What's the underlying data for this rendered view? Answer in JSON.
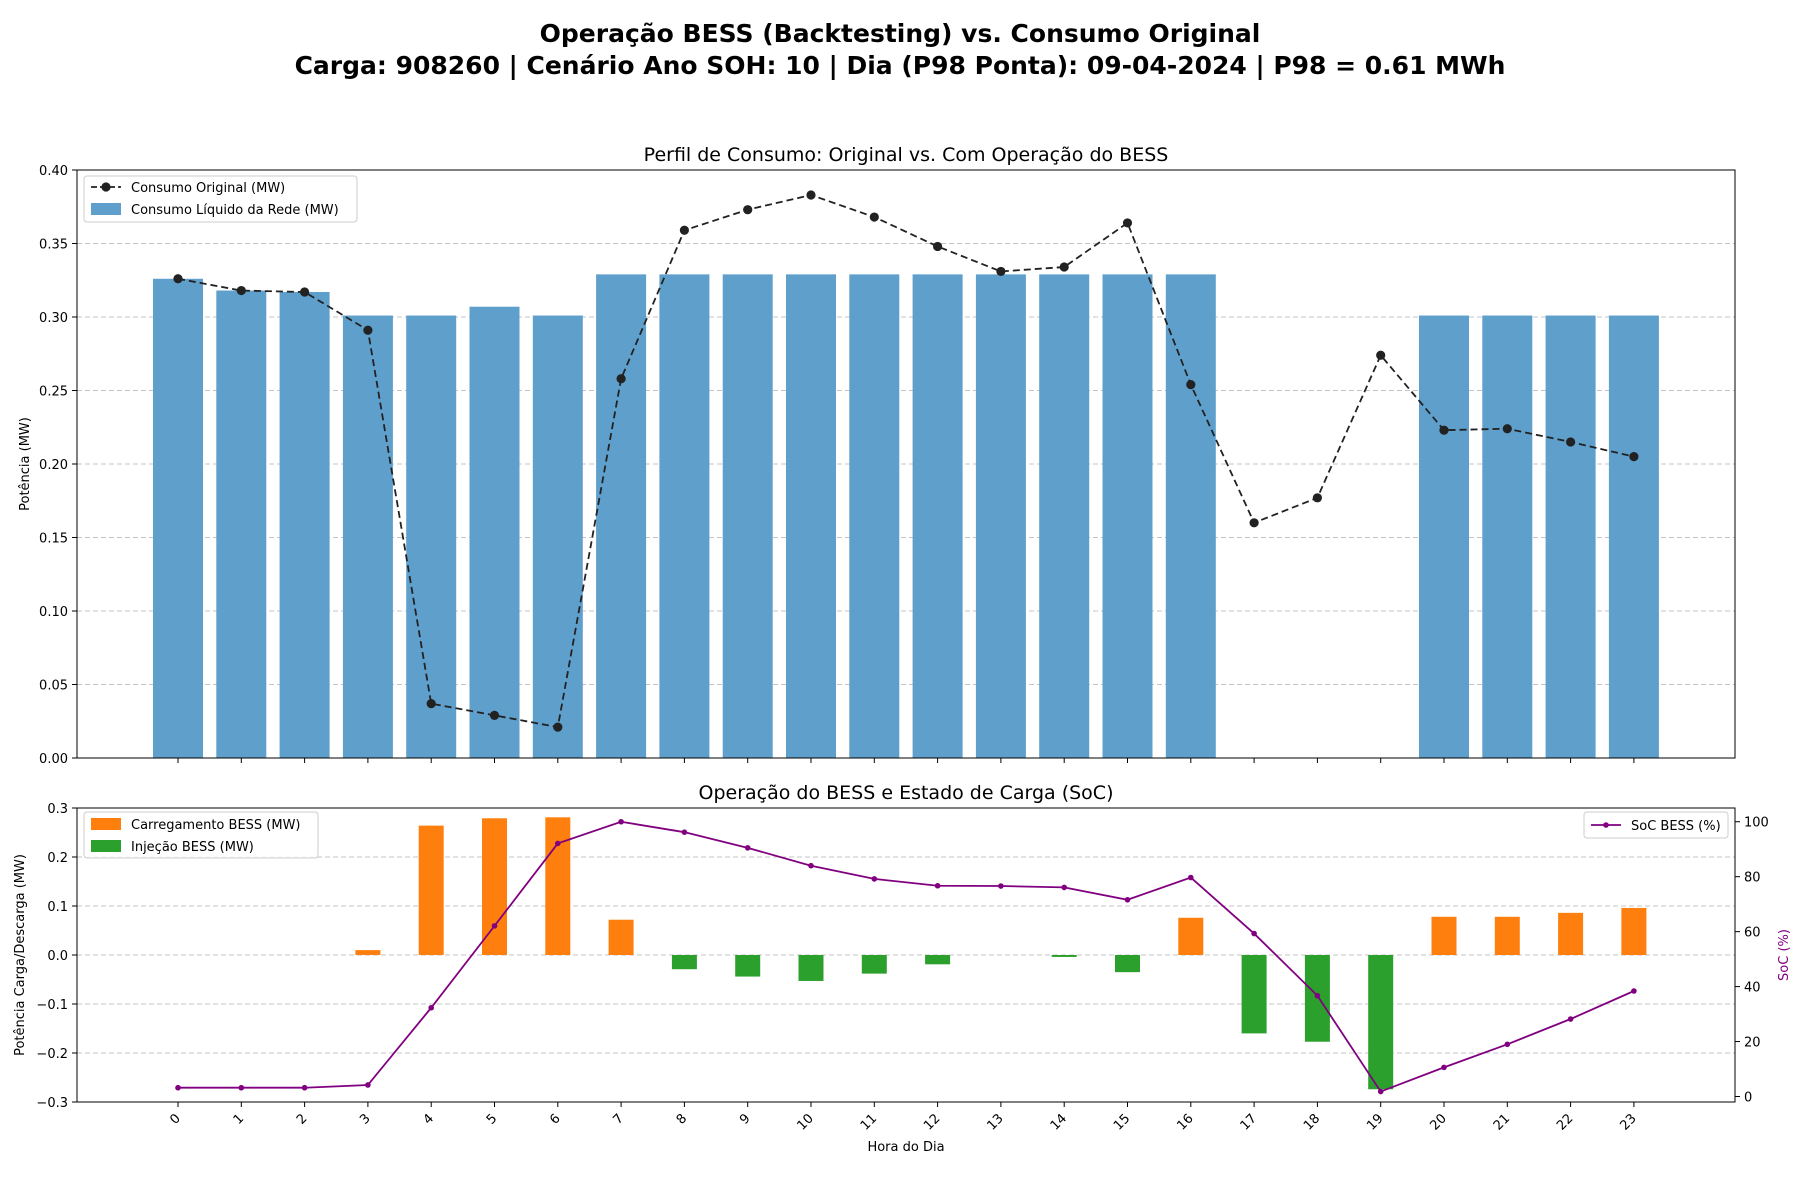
{
  "figure": {
    "title_line1": "Operação BESS (Backtesting) vs. Consumo Original",
    "title_line2": "Carga: 908260 | Cenário Ano SOH: 10 | Dia (P98 Ponta): 09-04-2024 | P98 = 0.61 MWh"
  },
  "colors": {
    "net_bar": "#5f9fcc",
    "original_line": "#222222",
    "charge_bar": "#ff7f0e",
    "discharge_bar": "#2ca02c",
    "soc_line": "#800080",
    "grid": "#c4c4c4"
  },
  "chart_data": [
    {
      "type": "bar",
      "title": "Perfil de Consumo: Original vs. Com Operação do BESS",
      "ylabel": "Potência (MW)",
      "xlabel": "",
      "ylim": [
        0,
        0.4
      ],
      "yticks": [
        "0.00",
        "0.05",
        "0.10",
        "0.15",
        "0.20",
        "0.25",
        "0.30",
        "0.35",
        "0.40"
      ],
      "grid": "horizontal, dashed",
      "legend_position": "upper-left",
      "categories": [
        0,
        1,
        2,
        3,
        4,
        5,
        6,
        7,
        8,
        9,
        10,
        11,
        12,
        13,
        14,
        15,
        16,
        17,
        18,
        19,
        20,
        21,
        22,
        23
      ],
      "series": [
        {
          "name": "Consumo Original (MW)",
          "kind": "line",
          "style": "dashed with markers",
          "values": [
            0.326,
            0.318,
            0.317,
            0.291,
            0.037,
            0.029,
            0.021,
            0.258,
            0.359,
            0.373,
            0.383,
            0.368,
            0.348,
            0.331,
            0.334,
            0.364,
            0.254,
            0.16,
            0.177,
            0.274,
            0.223,
            0.224,
            0.215,
            0.205
          ]
        },
        {
          "name": "Consumo Líquido da Rede (MW)",
          "kind": "bar",
          "values": [
            0.326,
            0.318,
            0.317,
            0.301,
            0.301,
            0.307,
            0.301,
            0.329,
            0.329,
            0.329,
            0.329,
            0.329,
            0.329,
            0.329,
            0.329,
            0.329,
            0.329,
            0,
            0,
            0,
            0.301,
            0.301,
            0.301,
            0.301
          ]
        }
      ]
    },
    {
      "type": "bar",
      "title": "Operação do BESS e Estado de Carga (SoC)",
      "xlabel": "Hora do Dia",
      "ylabel": "Potência Carga/Descarga (MW)",
      "y2label": "SoC (%)",
      "ylim": [
        -0.3,
        0.3
      ],
      "yticks": [
        "−0.3",
        "−0.2",
        "−0.1",
        "0.0",
        "0.1",
        "0.2",
        "0.3"
      ],
      "y2lim": [
        -2,
        105
      ],
      "y2ticks": [
        "0",
        "20",
        "40",
        "60",
        "80",
        "100"
      ],
      "grid": "horizontal, dashed",
      "legend_position": "upper-left and upper-right",
      "x_tick_rotation": "45 degrees",
      "categories": [
        0,
        1,
        2,
        3,
        4,
        5,
        6,
        7,
        8,
        9,
        10,
        11,
        12,
        13,
        14,
        15,
        16,
        17,
        18,
        19,
        20,
        21,
        22,
        23
      ],
      "series": [
        {
          "name": "Carregamento BESS (MW)",
          "kind": "bar",
          "values": [
            0,
            0,
            0,
            0.01,
            0.264,
            0.279,
            0.281,
            0.072,
            0,
            0,
            0,
            0,
            0,
            0,
            0,
            0,
            0.076,
            0,
            0,
            0,
            0.078,
            0.078,
            0.086,
            0.096
          ]
        },
        {
          "name": "Injeção BESS (MW)",
          "kind": "bar",
          "values": [
            0,
            0,
            0,
            0,
            0,
            0,
            0,
            0,
            -0.029,
            -0.044,
            -0.053,
            -0.038,
            -0.019,
            0,
            -0.004,
            -0.035,
            0,
            -0.16,
            -0.177,
            -0.274,
            0,
            0,
            0,
            0
          ]
        },
        {
          "name": "SoC BESS (%)",
          "kind": "line",
          "axis": "right",
          "values": [
            3.2,
            3.2,
            3.2,
            4.2,
            32.3,
            62.1,
            92.1,
            100.0,
            96.2,
            90.5,
            84.0,
            79.2,
            76.7,
            76.6,
            76.1,
            71.6,
            79.7,
            59.3,
            36.7,
            1.8,
            10.6,
            19.0,
            28.2,
            38.4
          ]
        }
      ]
    }
  ]
}
